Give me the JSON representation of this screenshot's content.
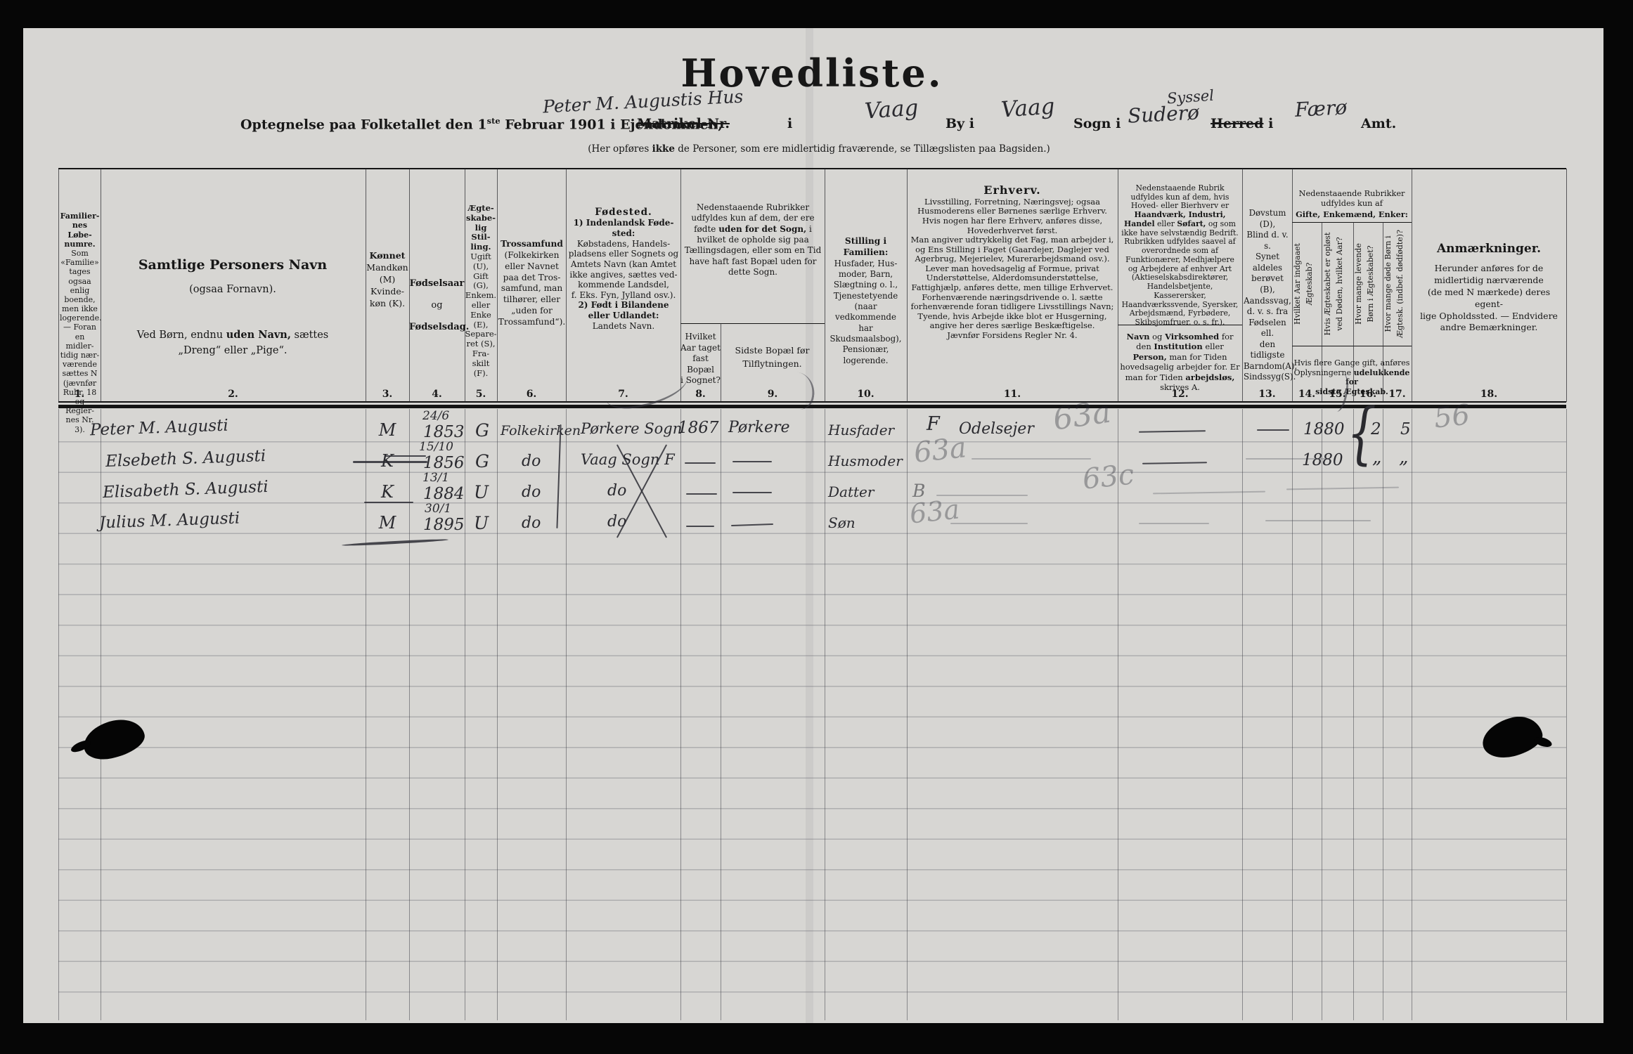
{
  "header": {
    "title": "Hovedliste.",
    "subtitle": {
      "p1": "Optegnelse paa Folketallet den 1",
      "sup": "ste",
      "p2": " Februar 1901 i Ejendommen,",
      "matrikel": "Matrikel-Nr.",
      "i1": "i",
      "by_i": "By i",
      "sogn_i": "Sogn i",
      "herred": "Herred",
      "i2": "i",
      "amt": "Amt."
    },
    "note": {
      "n1": "(Her opføres ",
      "n_bold": "ikke",
      "n2": " de Personer, som ere midlertidig fraværende, se Tillægslisten paa Bagsiden.)"
    },
    "handwritten": {
      "house": "Peter M. Augustis Hus",
      "by1": "Vaag",
      "by2": "Vaag",
      "sogn": "Suderø",
      "syssel": "Syssel",
      "amt": "Færø"
    }
  },
  "table": {
    "numbers": {
      "n1": "1.",
      "n2": "2.",
      "n3": "3.",
      "n4": "4.",
      "n5": "5.",
      "n6": "6.",
      "n7": "7.",
      "n8": "8.",
      "n9": "9.",
      "n10": "10.",
      "n11": "11.",
      "n12": "12.",
      "n13": "13.",
      "n14": "14.",
      "n15": "15.",
      "n16": "16.",
      "n17": "17.",
      "n18": "18."
    },
    "c1": {
      "head": "Familier-\nnes Løbe-\nnumre.",
      "body": "Som\n«Familie»\ntages ogsaa\nenlig\nboende,\nmen ikke\nlogerende.\n— Foran\nen midler-\ntidig nær-\nværende\nsættes N\n(jævnfør\nRubr. 18\nog Regler-\nnes Nr. 3)."
    },
    "c2": {
      "head": "Samtlige Personers Navn",
      "sub": "(ogsaa Fornavn).",
      "b1": "Ved Børn, endnu ",
      "b_bold": "uden Navn,",
      "b2": " sættes\n„Dreng“ eller „Pige“."
    },
    "c3": {
      "head": "Kønnet",
      "body": "Mandkøn\n(M)\nKvinde-\nkøn (K)."
    },
    "c4": {
      "l1": "Fødselsaar",
      "l2": "og",
      "l3": "Fødselsdag."
    },
    "c5": {
      "head": "Ægte-\nskabe-\nlig Stil-\nling.",
      "body": "Ugift\n(U),\nGift (G),\nEnkem.\neller\nEnke\n(E),\nSepare-\nret (S),\nFra-\nskilt\n(F)."
    },
    "c6": {
      "head": "Trossamfund",
      "body": "(Folkekirken\neller Navnet\npaa det Tros-\nsamfund, man\ntilhører, eller\n„uden for\nTrossamfund“)."
    },
    "c7": {
      "head": "Fødested.",
      "s1": "1) Indenlandsk Føde-\nsted:",
      "s2": "Købstadens, Handels-\npladsens eller Sognets og\nAmtets Navn (kan Amtet\nikke angives, sættes ved-\nkommende Landsdel,\nf. Eks. Fyn, Jylland osv.).",
      "s3": "2) Født i Bilandene\neller Udlandet:",
      "s4": "Landets Navn."
    },
    "g89": {
      "t1": "Nedenstaaende Rubrikker udfyldes kun af dem, der ere fødte ",
      "bold": "uden for det Sogn,",
      "t2": " i hvilket de opholde sig paa Tællingsdagen, eller som en Tid have haft fast Bopæl uden for dette Sogn."
    },
    "c8": {
      "body": "Hvilket\nAar taget\nfast Bopæl\ni Sognet?"
    },
    "c9": {
      "body": "Sidste Bopæl før\nTilflytningen."
    },
    "c10": {
      "head": "Stilling i Familien:",
      "body": "Husfader, Hus-\nmoder, Barn,\nSlægtning o. l.,\nTjenestetyende\n(naar vedkommende\nhar Skudsmaalsbog),\nPensionær,\nlogerende."
    },
    "c11": {
      "head": "Erhverv.",
      "body": "Livsstilling, Forretning, Næringsvej; ogsaa Husmoderens eller Børnenes særlige Erhverv.\nHvis nogen har flere Erhverv, anføres disse, Hovederhvervet først.\nMan angiver udtrykkelig det Fag, man arbejder i, og Ens Stilling i Faget (Gaardejer, Daglejer ved Agerbrug, Mejerielev, Murerarbejdsmand osv.).\nLever man hovedsagelig af Formue, privat Understøttelse, Alderdomsunderstøttelse, Fattighjælp, anføres dette, men tillige Erhvervet.\nForhenværende næringsdrivende o. l. sætte forhenværende foran tidligere Livsstillings Navn; Tyende, hvis Arbejde ikke blot er Husgerning, angive her deres særlige Beskæftigelse.\nJævnfør Forsidens Regler Nr. 4."
    },
    "c12": {
      "top1": "Nedenstaaende Rubrik udfyldes kun af dem, hvis Hoved- eller Bierhverv er ",
      "top_b1": "Haandværk, Industri, Handel",
      "top2": " eller ",
      "top_b2": "Søfart,",
      "top3": " og som ikke have selvstændig Bedrift. Rubrikken udfyldes saavel af overordnede som af Funktionærer, Medhjælpere og Arbejdere af enhver Art (Aktieselskabsdirektører, Handelsbetjente, Kasserersker, Haandværkssvende, Syersker, Arbejdsmænd, Fyrbødere, Skibsjomfruer, o. s. fr.).",
      "bot1": "Navn",
      "bot2": " og ",
      "bot3": "Virksomhed",
      "bot4": " for den ",
      "bot5": "Institution",
      "bot6": " eller ",
      "bot7": "Person,",
      "bot8": " man for Tiden hovedsagelig arbejder for. Er man for Tiden ",
      "bot9": "arbejdsløs,",
      "bot10": " skrives A."
    },
    "c13": {
      "body": "Døvstum (D),\nBlind d. v. s.\nSynet aldeles\nberøvet (B),\nAandssvag,\nd. v. s. fra\nFødselen ell.\nden tidligste\nBarndom(A),\nSindssyg(S)."
    },
    "g1417": {
      "t1": "Nedenstaaende Rubrikker\nudfyldes kun af",
      "bold": "Gifte, Enkemænd, Enker:"
    },
    "c14": {
      "v": "Hvilket Aar indgaaet\nÆgteskab?"
    },
    "c15": {
      "v": "Hvis Ægteskabet er opløst\nved Døden, hvilket Aar?"
    },
    "c16": {
      "v": "Hvor mange levende\nBørn i Ægteskabet?"
    },
    "c17": {
      "v": "Hvor mange døde Børn i\nÆgtesk. (indbef. dødfødte)?"
    },
    "n1417": {
      "t1": "Hvis flere Gange gift, anføres\nOplysningerne ",
      "bold": "udelukkende for\nsidste Ægteskab."
    },
    "c18": {
      "head": "Anmærkninger.",
      "body": "Herunder anføres for de\nmidlertidig nærværende\n(de med N mærkede) deres egent-\nlige Opholdssted. — Endvidere\nandre Bemærkninger."
    }
  },
  "rows": [
    {
      "name": "Peter M. Augusti",
      "sex": "M",
      "bday": "24/6",
      "byear": "1853",
      "marital": "G",
      "faith": "Folkekirken",
      "birthplace": "Pørkere Sogn",
      "settled": "1867",
      "lastres": "Pørkere",
      "family": "Husfader",
      "occ1": "F",
      "occ2": "Odelsejer",
      "pencil_occ": "63a",
      "married": "1880",
      "children_living": "2",
      "children_dead": "5",
      "pencil_note": "56"
    },
    {
      "name": "Elsebeth S. Augusti",
      "sex": "K",
      "bday": "15/10",
      "byear": "1856",
      "marital": "G",
      "faith": "do",
      "birthplace": "Vaag Sogn F",
      "settled": "—",
      "lastres": "—",
      "family": "Husmoder",
      "pencil_occ": "63a",
      "married": "1880",
      "children_living": "„",
      "children_dead": "„"
    },
    {
      "name": "Elisabeth S. Augusti",
      "sex": "K",
      "bday": "13/1",
      "byear": "1884",
      "marital": "U",
      "faith": "do",
      "birthplace": "do",
      "settled": "—",
      "lastres": "—",
      "family": "Datter",
      "occ1": "B",
      "pencil_occ": "63c"
    },
    {
      "name": "Julius M. Augusti",
      "sex": "M",
      "bday": "30/1",
      "byear": "1895",
      "marital": "U",
      "faith": "do",
      "birthplace": "do",
      "settled": "—",
      "lastres": "—",
      "family": "Søn",
      "pencil_occ": "63a"
    }
  ],
  "marks": {
    "brace": "{"
  }
}
